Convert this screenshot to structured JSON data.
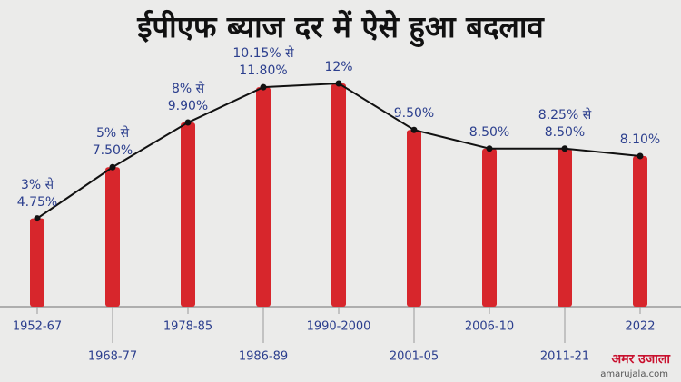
{
  "chart_data": {
    "type": "bar",
    "title": "ईपीएफ ब्याज दर में ऐसे हुआ बदलाव",
    "categories": [
      "1952-67",
      "1968-77",
      "1978-85",
      "1986-89",
      "1990-2000",
      "2001-05",
      "2006-10",
      "2011-21",
      "2022"
    ],
    "values": [
      4.75,
      7.5,
      9.9,
      11.8,
      12,
      9.5,
      8.5,
      8.5,
      8.1
    ],
    "value_labels": [
      "3% से 4.75%",
      "5% से 7.50%",
      "8% से 9.90%",
      "10.15% से 11.80%",
      "12%",
      "9.50%",
      "8.50%",
      "8.25% से 8.50%",
      "8.10%"
    ],
    "color": "#d7262c",
    "line_color": "#111111",
    "logo": "अमर उजाला",
    "logo_url": "amarujala.com"
  }
}
